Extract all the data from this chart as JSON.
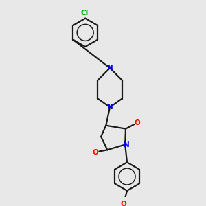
{
  "bg_color": "#e8e8e8",
  "bond_color": "#1a1a1a",
  "N_color": "#0000ee",
  "O_color": "#ee1100",
  "Cl_color": "#00aa00",
  "lw": 1.6,
  "fig_size": [
    3.0,
    3.0
  ],
  "dpi": 100,
  "xlim": [
    0,
    10
  ],
  "ylim": [
    0,
    10
  ]
}
